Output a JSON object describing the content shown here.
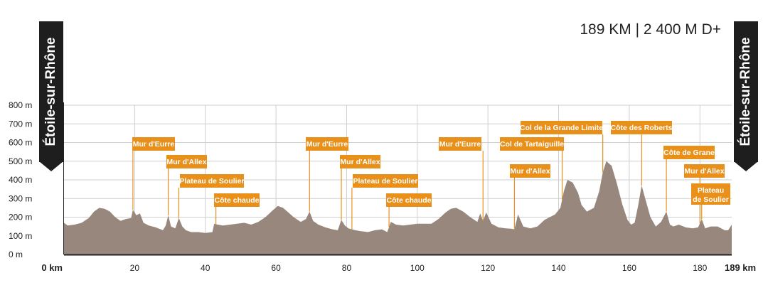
{
  "summary": "189 KM | 2 400 M D+",
  "start_label": "Étoile-sur-Rhône",
  "end_label": "Étoile-sur-Rhône",
  "colors": {
    "profile": "#98877c",
    "label_bg": "#e8901a",
    "label_text": "#ffffff",
    "grid": "#cfcfcf",
    "axis": "#222222",
    "flag": "#1e1e1e"
  },
  "chart_data": {
    "type": "area",
    "xlabel": "",
    "ylabel": "",
    "xlim": [
      0,
      189
    ],
    "ylim": [
      0,
      800
    ],
    "x_ticks": [
      {
        "value": 0,
        "label": "0 km"
      },
      {
        "value": 20,
        "label": "20"
      },
      {
        "value": 40,
        "label": "40"
      },
      {
        "value": 60,
        "label": "60"
      },
      {
        "value": 80,
        "label": "80"
      },
      {
        "value": 100,
        "label": "100"
      },
      {
        "value": 120,
        "label": "120"
      },
      {
        "value": 140,
        "label": "140"
      },
      {
        "value": 160,
        "label": "160"
      },
      {
        "value": 180,
        "label": "180"
      },
      {
        "value": 189,
        "label": "189 km"
      }
    ],
    "y_ticks": [
      {
        "value": 0,
        "label": "0 m"
      },
      {
        "value": 100,
        "label": "100 m"
      },
      {
        "value": 200,
        "label": "200 m"
      },
      {
        "value": 300,
        "label": "300 m"
      },
      {
        "value": 400,
        "label": "400 m"
      },
      {
        "value": 500,
        "label": "500 m"
      },
      {
        "value": 600,
        "label": "600 m"
      },
      {
        "value": 700,
        "label": "700 m"
      },
      {
        "value": 800,
        "label": "800 m"
      }
    ],
    "grid": true,
    "series": [
      {
        "x": [
          0,
          1,
          3,
          5,
          7,
          8.5,
          10,
          11.5,
          13,
          14.5,
          16,
          17.5,
          19,
          19.5,
          20.5,
          21.5,
          22.5,
          24,
          26,
          28,
          28.8,
          29.5,
          30.3,
          31.5,
          32.5,
          33.5,
          34.5,
          36,
          38,
          40,
          42,
          42.5,
          43.5,
          45,
          47,
          49,
          51,
          53,
          55,
          57,
          59,
          60.5,
          62,
          63.5,
          65,
          67,
          68.5,
          69.5,
          70.5,
          72,
          74,
          76,
          77.5,
          78.5,
          79.5,
          80.5,
          81.5,
          82.5,
          84,
          86,
          88,
          90,
          91.5,
          92.5,
          94,
          96,
          98,
          100,
          102,
          104,
          106,
          108,
          109.5,
          111,
          113,
          115,
          117,
          117.8,
          118.6,
          119.5,
          121,
          123,
          125,
          126.5,
          127.5,
          128.5,
          130,
          132,
          134,
          136,
          137.5,
          139,
          140.5,
          141.5,
          142.5,
          144,
          145.5,
          146.5,
          148,
          150,
          151.5,
          152.5,
          153.5,
          155,
          156.5,
          158,
          159.5,
          160.5,
          161.5,
          162.5,
          163.5,
          164.5,
          166,
          167.5,
          169,
          170.5,
          171.5,
          172.5,
          174,
          176,
          178,
          179.5,
          180.5,
          181.5,
          183,
          185,
          187,
          188,
          189
        ],
        "values": [
          170,
          155,
          160,
          170,
          195,
          230,
          250,
          245,
          230,
          200,
          180,
          190,
          195,
          240,
          210,
          220,
          170,
          155,
          145,
          130,
          155,
          210,
          150,
          140,
          195,
          150,
          130,
          120,
          120,
          115,
          120,
          165,
          160,
          155,
          160,
          165,
          170,
          160,
          175,
          200,
          235,
          260,
          250,
          225,
          200,
          175,
          190,
          230,
          180,
          160,
          145,
          135,
          130,
          185,
          155,
          140,
          135,
          130,
          125,
          120,
          130,
          135,
          120,
          175,
          160,
          155,
          160,
          165,
          165,
          165,
          190,
          225,
          245,
          250,
          230,
          200,
          175,
          220,
          180,
          225,
          165,
          145,
          140,
          138,
          135,
          215,
          150,
          140,
          150,
          185,
          200,
          215,
          250,
          340,
          400,
          385,
          330,
          265,
          230,
          250,
          340,
          440,
          500,
          475,
          380,
          270,
          185,
          160,
          170,
          260,
          370,
          300,
          200,
          150,
          175,
          230,
          160,
          150,
          160,
          145,
          140,
          145,
          190,
          140,
          150,
          150,
          130,
          130,
          160
        ]
      }
    ],
    "annotations": [
      {
        "label": "Mur d'Eurre",
        "x": 19.5
      },
      {
        "label": "Mur d'Allex",
        "x": 29.5
      },
      {
        "label": "Plateau de Soulier",
        "x": 32.5
      },
      {
        "label": "Côte chaude",
        "x": 43
      },
      {
        "label": "Mur d'Eurre",
        "x": 69.5
      },
      {
        "label": "Mur d'Allex",
        "x": 78.5
      },
      {
        "label": "Plateau de Soulier",
        "x": 81.5
      },
      {
        "label": "Côte chaude",
        "x": 92
      },
      {
        "label": "Mur d'Eurre",
        "x": 118.6
      },
      {
        "label": "Mur d'Allex",
        "x": 127.5
      },
      {
        "label": "Col de Tartaiguille",
        "x": 141
      },
      {
        "label": "Col de la Grande Limite",
        "x": 152.5
      },
      {
        "label": "Côte des Roberts",
        "x": 163.5
      },
      {
        "label": "Côte de Grane",
        "x": 170.5
      },
      {
        "label": "Mur d'Allex",
        "x": 180
      },
      {
        "label": "Plateau\nde Soulier",
        "x": 180.5
      }
    ]
  }
}
